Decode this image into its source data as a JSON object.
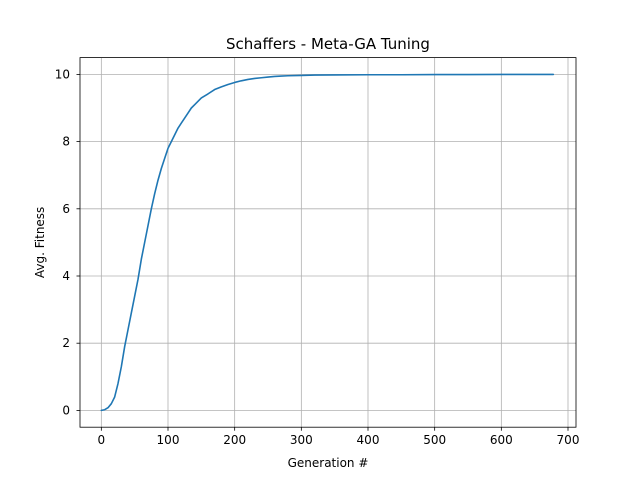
{
  "chart_data": {
    "type": "line",
    "title": "Schaffers - Meta-GA Tuning",
    "xlabel": "Generation #",
    "ylabel": "Avg. Fitness",
    "xlim": [
      -32,
      712
    ],
    "ylim": [
      -0.5,
      10.5
    ],
    "xticks": [
      0,
      100,
      200,
      300,
      400,
      500,
      600,
      700
    ],
    "yticks": [
      0,
      2,
      4,
      6,
      8,
      10
    ],
    "grid": true,
    "colors": {
      "series": "#1f77b4"
    },
    "series": [
      {
        "x": [
          0,
          5,
          10,
          15,
          20,
          25,
          30,
          35,
          40,
          45,
          50,
          55,
          60,
          65,
          70,
          75,
          80,
          85,
          90,
          95,
          100,
          105,
          110,
          115,
          120,
          125,
          130,
          135,
          140,
          145,
          150,
          160,
          170,
          180,
          190,
          200,
          210,
          220,
          230,
          240,
          250,
          260,
          270,
          280,
          300,
          320,
          350,
          400,
          450,
          500,
          550,
          600,
          650,
          678
        ],
        "y": [
          0.0,
          0.02,
          0.08,
          0.2,
          0.4,
          0.8,
          1.3,
          1.9,
          2.4,
          2.9,
          3.4,
          3.9,
          4.5,
          5.0,
          5.5,
          6.0,
          6.45,
          6.85,
          7.2,
          7.5,
          7.8,
          8.0,
          8.2,
          8.4,
          8.55,
          8.7,
          8.85,
          9.0,
          9.1,
          9.2,
          9.3,
          9.42,
          9.55,
          9.63,
          9.7,
          9.76,
          9.81,
          9.85,
          9.88,
          9.9,
          9.92,
          9.94,
          9.95,
          9.96,
          9.97,
          9.98,
          9.985,
          9.99,
          9.99,
          9.995,
          9.995,
          10.0,
          10.0,
          10.0
        ]
      }
    ]
  }
}
